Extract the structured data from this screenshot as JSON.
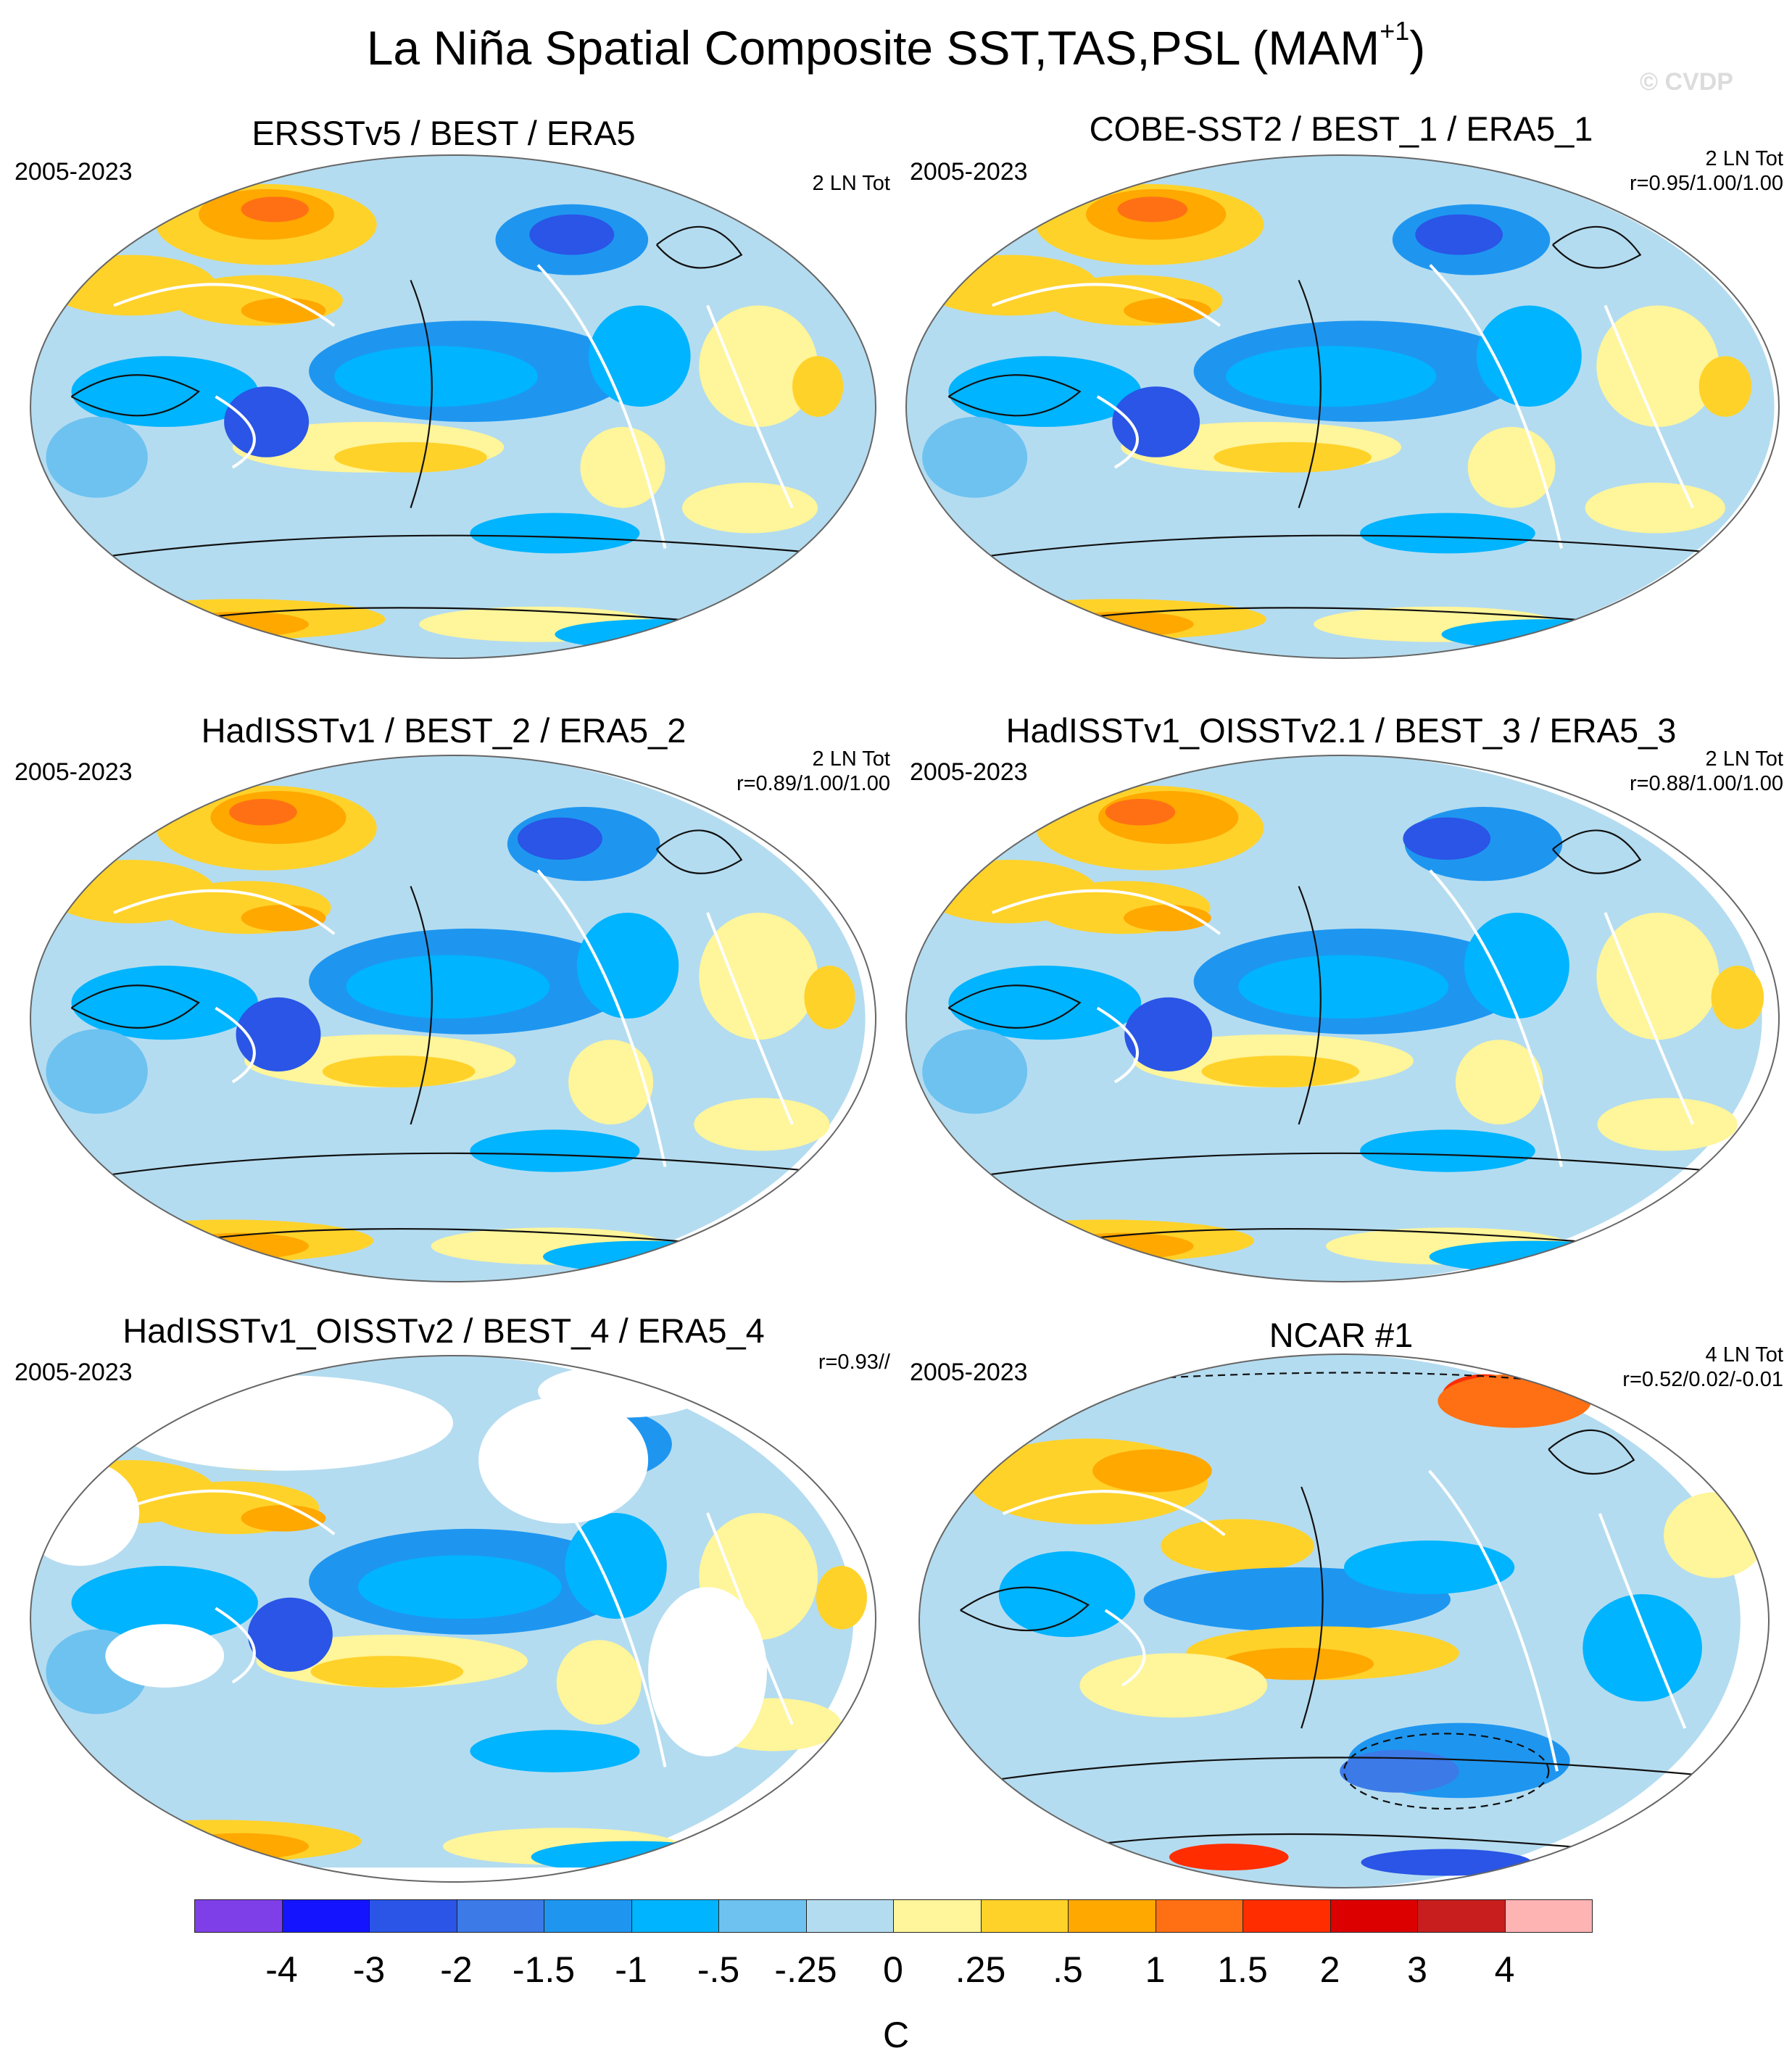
{
  "figure": {
    "title": "La Niña Spatial Composite SST,TAS,PSL (MAM",
    "title_superscript": "+1",
    "title_close": ")",
    "watermark": "© CVDP"
  },
  "panels": [
    {
      "title": "ERSSTv5 / BEST / ERA5",
      "period": "2005-2023",
      "info_line1": "2 LN Tot",
      "info_line2": ""
    },
    {
      "title": "COBE-SST2 / BEST_1 / ERA5_1",
      "period": "2005-2023",
      "info_line1": "2 LN Tot",
      "info_line2": "r=0.95/1.00/1.00"
    },
    {
      "title": "HadISSTv1 / BEST_2 / ERA5_2",
      "period": "2005-2023",
      "info_line1": "2 LN Tot",
      "info_line2": "r=0.89/1.00/1.00"
    },
    {
      "title": "HadISSTv1_OISSTv2.1 / BEST_3 / ERA5_3",
      "period": "2005-2023",
      "info_line1": "2 LN Tot",
      "info_line2": "r=0.88/1.00/1.00"
    },
    {
      "title": "HadISSTv1_OISSTv2 / BEST_4 / ERA5_4",
      "period": "2005-2023",
      "info_line1": "",
      "info_line2": "r=0.93//"
    },
    {
      "title": "NCAR #1",
      "period": "2005-2023",
      "info_line1": "4 LN Tot",
      "info_line2": "r=0.52/0.02/-0.01"
    }
  ],
  "colorbar": {
    "unit": "C",
    "labels": [
      "-4",
      "-3",
      "-2",
      "-1.5",
      "-1",
      "-.5",
      "-.25",
      "0",
      ".25",
      ".5",
      "1",
      "1.5",
      "2",
      "3",
      "4"
    ],
    "colors": [
      "#7f3fe8",
      "#1414ff",
      "#2a55e6",
      "#3c7ae8",
      "#1e96f0",
      "#00b4ff",
      "#6ec2f0",
      "#b4dcf0",
      "#fff59a",
      "#ffd22a",
      "#ffa800",
      "#ff7014",
      "#ff2d00",
      "#dc0000",
      "#c81e1e",
      "#ffb4b4"
    ]
  }
}
